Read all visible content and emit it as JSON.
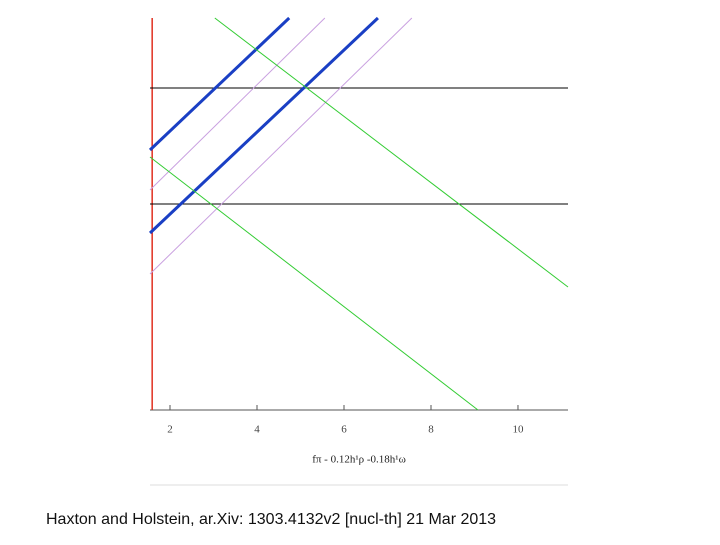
{
  "chart_data": {
    "type": "line",
    "xlabel": "fπ - 0.12h¹ρ -0.18h¹ω",
    "caption": "Haxton and Holstein, ar.Xiv: 1303.4132v2  [nucl-th]  21 Mar 2013",
    "xlim": [
      1.54,
      11.15
    ],
    "ylim": [
      0,
      392
    ],
    "xticks": [
      2,
      4,
      6,
      8,
      10
    ],
    "series": [
      {
        "color": "#e03020",
        "width": 1.5,
        "x": [
          1.59,
          1.59
        ],
        "values": [
          0,
          392
        ]
      },
      {
        "color": "#000000",
        "width": 1,
        "x": [
          1.54,
          11.15
        ],
        "values": [
          322,
          322
        ]
      },
      {
        "color": "#000000",
        "width": 1,
        "x": [
          1.54,
          11.15
        ],
        "values": [
          206,
          206
        ]
      },
      {
        "color": "#c9a0e0",
        "width": 1,
        "x": [
          1.54,
          5.56
        ],
        "values": [
          220,
          392
        ]
      },
      {
        "color": "#c9a0e0",
        "width": 1,
        "x": [
          1.54,
          7.56
        ],
        "values": [
          136,
          392
        ]
      },
      {
        "color": "#1a3fc4",
        "width": 3,
        "x": [
          1.54,
          4.74
        ],
        "values": [
          260,
          392
        ]
      },
      {
        "color": "#1a3fc4",
        "width": 3,
        "x": [
          1.54,
          6.78
        ],
        "values": [
          177,
          392
        ]
      },
      {
        "color": "#33cc33",
        "width": 1,
        "x": [
          3.03,
          11.15
        ],
        "values": [
          392,
          123
        ]
      },
      {
        "color": "#33cc33",
        "width": 1,
        "x": [
          1.54,
          9.08
        ],
        "values": [
          253,
          0
        ]
      }
    ]
  }
}
